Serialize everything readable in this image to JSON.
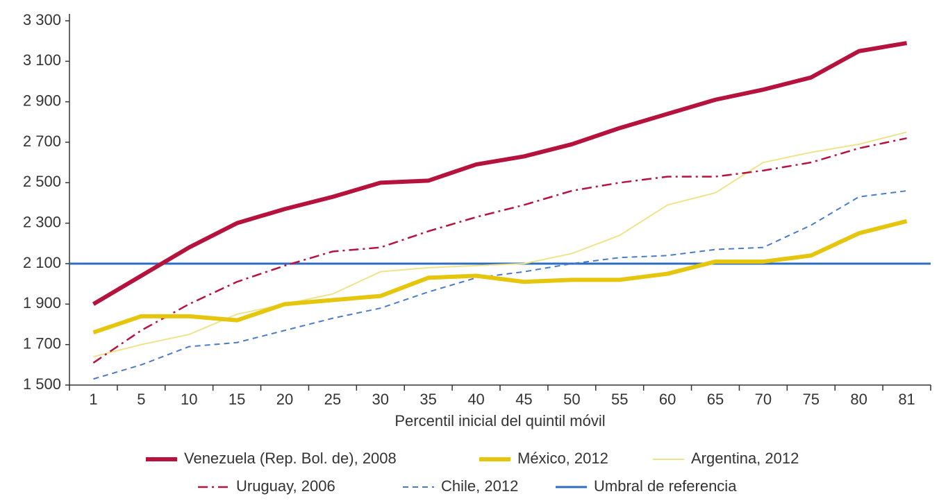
{
  "chart_data": {
    "type": "line",
    "x_label": "Percentil inicial del quintil móvil",
    "categories": [
      "1",
      "5",
      "10",
      "15",
      "20",
      "25",
      "30",
      "35",
      "40",
      "45",
      "50",
      "55",
      "60",
      "65",
      "70",
      "75",
      "80",
      "81"
    ],
    "ylim": [
      1500,
      3300
    ],
    "yticks": [
      {
        "value": 1500,
        "label": "1 500"
      },
      {
        "value": 1700,
        "label": "1 700"
      },
      {
        "value": 1900,
        "label": "1 900"
      },
      {
        "value": 2100,
        "label": "2 100"
      },
      {
        "value": 2300,
        "label": "2 300"
      },
      {
        "value": 2500,
        "label": "2 500"
      },
      {
        "value": 2700,
        "label": "2 700"
      },
      {
        "value": 2900,
        "label": "2 900"
      },
      {
        "value": 3100,
        "label": "3 100"
      },
      {
        "value": 3300,
        "label": "3 300"
      }
    ],
    "grid": false,
    "series": [
      {
        "name": "Venezuela (Rep. Bol. de), 2008",
        "color": "#b5123e",
        "width": 6,
        "dash": "solid",
        "values": [
          1900,
          2040,
          2180,
          2300,
          2370,
          2430,
          2500,
          2510,
          2590,
          2630,
          2690,
          2770,
          2840,
          2910,
          2960,
          3020,
          3150,
          3190
        ]
      },
      {
        "name": "México, 2012",
        "color": "#e6c60c",
        "width": 6,
        "dash": "solid",
        "values": [
          1760,
          1840,
          1840,
          1820,
          1900,
          1920,
          1940,
          2030,
          2040,
          2010,
          2020,
          2020,
          2050,
          2110,
          2110,
          2140,
          2250,
          2310
        ]
      },
      {
        "name": "Argentina, 2012",
        "color": "#efe38a",
        "width": 2,
        "dash": "solid",
        "values": [
          1640,
          1700,
          1750,
          1850,
          1900,
          1950,
          2060,
          2080,
          2090,
          2100,
          2150,
          2240,
          2390,
          2450,
          2600,
          2650,
          2690,
          2750
        ]
      },
      {
        "name": "Uruguay, 2006",
        "color": "#b5123e",
        "width": 2.5,
        "dash": "dashdot",
        "values": [
          1610,
          1770,
          1900,
          2010,
          2090,
          2160,
          2180,
          2260,
          2330,
          2390,
          2460,
          2500,
          2530,
          2530,
          2560,
          2600,
          2670,
          2720
        ]
      },
      {
        "name": "Chile, 2012",
        "color": "#4a7bc8",
        "width": 2,
        "dash": "dashed",
        "values": [
          1530,
          1600,
          1690,
          1710,
          1770,
          1830,
          1880,
          1960,
          2030,
          2060,
          2100,
          2130,
          2140,
          2170,
          2180,
          2290,
          2430,
          2460
        ]
      }
    ],
    "reference_line": {
      "name": "Umbral de referencia",
      "color": "#2e6dbf",
      "width": 3,
      "value": 2100
    }
  }
}
